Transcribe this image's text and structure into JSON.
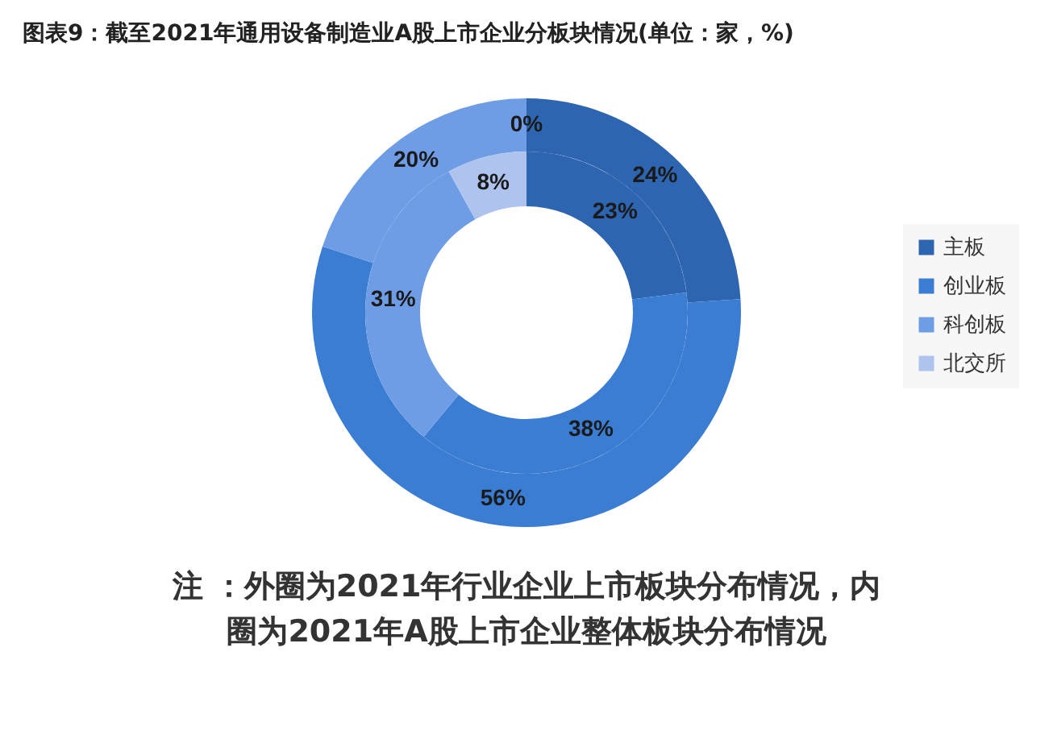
{
  "chart_data": {
    "type": "donut",
    "title": "图表9：截至2021年通用设备制造业A股上市企业分板块情况(单位：家，%)",
    "categories": [
      "主板",
      "创业板",
      "科创板",
      "北交所"
    ],
    "colors": [
      "#2e65b0",
      "#3a7dd3",
      "#6e9de6",
      "#aec4ee"
    ],
    "series": [
      {
        "values": [
          24,
          56,
          20,
          0
        ],
        "value_labels": [
          "24%",
          "56%",
          "20%",
          "0%"
        ]
      },
      {
        "values": [
          23,
          38,
          31,
          8
        ],
        "value_labels": [
          "23%",
          "38%",
          "31%",
          "8%"
        ]
      }
    ],
    "legend": "right",
    "annotations": [
      "注 ：外圈为2021年行业企业上市板块分布情况，内圈为2021年A股上市企业整体板块分布情况"
    ]
  }
}
